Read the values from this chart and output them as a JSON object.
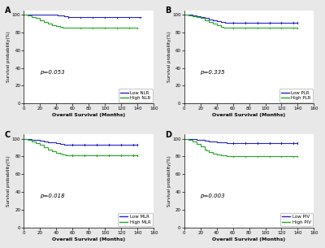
{
  "panels": [
    {
      "label": "A",
      "pvalue": "p=0.053",
      "low_label": "Low NLR",
      "high_label": "High NLR",
      "low_color": "#2222CC",
      "high_color": "#22AA22",
      "low_x": [
        0,
        5,
        10,
        15,
        20,
        25,
        30,
        35,
        40,
        42,
        45,
        50,
        55,
        60,
        70,
        80,
        90,
        100,
        110,
        120,
        130,
        140,
        145
      ],
      "low_y": [
        100,
        100,
        100,
        100,
        100,
        100,
        100,
        100,
        100,
        99,
        99,
        98,
        97,
        97,
        97,
        97,
        97,
        97,
        97,
        97,
        97,
        97,
        97
      ],
      "low_censor_x": [
        55,
        70,
        85,
        100,
        115,
        130,
        143
      ],
      "low_censor_y": [
        97,
        97,
        97,
        97,
        97,
        97,
        97
      ],
      "high_x": [
        0,
        5,
        10,
        15,
        20,
        25,
        30,
        35,
        40,
        45,
        48,
        50,
        52,
        55,
        60,
        65,
        70,
        80,
        90,
        100,
        110,
        120,
        130,
        140
      ],
      "high_y": [
        100,
        99,
        97,
        96,
        94,
        92,
        90,
        88,
        87,
        86,
        85,
        85,
        85,
        85,
        85,
        85,
        85,
        85,
        85,
        85,
        85,
        85,
        85,
        85
      ],
      "high_censor_x": [
        70,
        85,
        100,
        115,
        130,
        140
      ],
      "high_censor_y": [
        85,
        85,
        85,
        85,
        85,
        85
      ]
    },
    {
      "label": "B",
      "pvalue": "p=0.335",
      "low_label": "Low PLR",
      "high_label": "High PLR",
      "low_color": "#2222CC",
      "high_color": "#22AA22",
      "low_x": [
        0,
        5,
        10,
        15,
        20,
        25,
        30,
        35,
        40,
        45,
        50,
        52,
        55,
        60,
        70,
        80,
        90,
        100,
        110,
        120,
        130,
        140
      ],
      "low_y": [
        100,
        100,
        99,
        98,
        97,
        96,
        95,
        94,
        93,
        92,
        91,
        91,
        91,
        91,
        91,
        91,
        91,
        91,
        91,
        91,
        91,
        91
      ],
      "low_censor_x": [
        60,
        75,
        90,
        105,
        120,
        135,
        140
      ],
      "low_censor_y": [
        91,
        91,
        91,
        91,
        91,
        91,
        91
      ],
      "high_x": [
        0,
        5,
        10,
        15,
        20,
        25,
        30,
        35,
        40,
        45,
        48,
        50,
        52,
        55,
        60,
        70,
        80,
        90,
        100,
        110,
        120,
        130,
        140
      ],
      "high_y": [
        100,
        99,
        98,
        97,
        96,
        94,
        92,
        90,
        88,
        86,
        85,
        85,
        85,
        85,
        85,
        85,
        85,
        85,
        85,
        85,
        85,
        85,
        85
      ],
      "high_censor_x": [
        60,
        75,
        90,
        105,
        120,
        135,
        140
      ],
      "high_censor_y": [
        85,
        85,
        85,
        85,
        85,
        85,
        85
      ]
    },
    {
      "label": "C",
      "pvalue": "p=0.018",
      "low_label": "Low MLR",
      "high_label": "High MLR",
      "low_color": "#2222CC",
      "high_color": "#22AA22",
      "low_x": [
        0,
        5,
        10,
        15,
        20,
        25,
        30,
        35,
        40,
        45,
        50,
        52,
        55,
        60,
        70,
        80,
        90,
        100,
        110,
        120,
        130,
        140
      ],
      "low_y": [
        100,
        100,
        99,
        99,
        98,
        97,
        96,
        96,
        95,
        94,
        93,
        93,
        93,
        93,
        93,
        93,
        93,
        93,
        93,
        93,
        93,
        93
      ],
      "low_censor_x": [
        60,
        75,
        90,
        105,
        120,
        135,
        140
      ],
      "low_censor_y": [
        93,
        93,
        93,
        93,
        93,
        93,
        93
      ],
      "high_x": [
        0,
        5,
        10,
        15,
        20,
        25,
        30,
        35,
        40,
        45,
        48,
        50,
        52,
        55,
        60,
        70,
        80,
        90,
        100,
        110,
        120,
        130,
        140
      ],
      "high_y": [
        100,
        99,
        97,
        95,
        93,
        90,
        88,
        86,
        84,
        83,
        82,
        82,
        81,
        81,
        81,
        81,
        81,
        81,
        81,
        81,
        81,
        81,
        81
      ],
      "high_censor_x": [
        60,
        75,
        90,
        105,
        120,
        135,
        140
      ],
      "high_censor_y": [
        81,
        81,
        81,
        81,
        81,
        81,
        81
      ]
    },
    {
      "label": "D",
      "pvalue": "p=0.003",
      "low_label": "Low PIV",
      "high_label": "High PIV",
      "low_color": "#2222CC",
      "high_color": "#22AA22",
      "low_x": [
        0,
        5,
        10,
        15,
        20,
        25,
        30,
        35,
        40,
        45,
        50,
        52,
        55,
        60,
        70,
        80,
        90,
        100,
        110,
        120,
        130,
        140
      ],
      "low_y": [
        100,
        100,
        100,
        99,
        99,
        98,
        97,
        97,
        96,
        96,
        96,
        95,
        95,
        95,
        95,
        95,
        95,
        95,
        95,
        95,
        95,
        95
      ],
      "low_censor_x": [
        60,
        75,
        90,
        105,
        120,
        135,
        140
      ],
      "low_censor_y": [
        95,
        95,
        95,
        95,
        95,
        95,
        95
      ],
      "high_x": [
        0,
        5,
        10,
        15,
        20,
        25,
        27,
        30,
        35,
        40,
        45,
        48,
        50,
        52,
        55,
        60,
        70,
        80,
        90,
        100,
        110,
        120,
        130,
        140
      ],
      "high_y": [
        100,
        99,
        97,
        94,
        91,
        88,
        87,
        85,
        83,
        82,
        81,
        81,
        81,
        80,
        80,
        80,
        80,
        80,
        80,
        80,
        80,
        80,
        80,
        80
      ],
      "high_censor_x": [
        60,
        75,
        90,
        105,
        120,
        135,
        140
      ],
      "high_censor_y": [
        80,
        80,
        80,
        80,
        80,
        80,
        80
      ]
    }
  ],
  "xlabel": "Overall Survival (Months)",
  "ylabel": "Survival probability(%)",
  "xlim": [
    0,
    160
  ],
  "ylim": [
    0,
    105
  ],
  "xticks": [
    0,
    20,
    40,
    60,
    80,
    100,
    120,
    140,
    160
  ],
  "yticks": [
    0,
    20,
    40,
    60,
    80,
    100
  ],
  "background_color": "#ffffff",
  "fig_background": "#e8e8e8"
}
